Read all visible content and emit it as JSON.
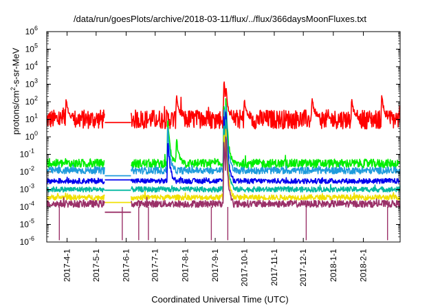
{
  "chart_data": {
    "type": "line",
    "title": "/data/run/goesPlots/archive/2018-03-11/flux/../flux/366daysMoonFluxes.txt",
    "ylabel": "protons/cm²-s-sr-MeV",
    "xlabel": "Coordinated Universal Time (UTC)",
    "yscale": "log",
    "ylim": [
      1e-06,
      1000000.0
    ],
    "xlim": [
      "2017-03-11",
      "2018-03-11"
    ],
    "y_ticks": [
      "10^-6",
      "10^-5",
      "10^-4",
      "10^-3",
      "10^-2",
      "10^-1",
      "10^0",
      "10^1",
      "10^2",
      "10^3",
      "10^4",
      "10^5",
      "10^6"
    ],
    "x_ticks": [
      "2017-4-1",
      "2017-5-1",
      "2017-6-1",
      "2017-7-1",
      "2017-8-1",
      "2017-9-1",
      "2017-10-1",
      "2017-11-1",
      "2017-12-1",
      "2018-1-1",
      "2018-2-1"
    ],
    "x_tick_dates": [
      "2017-04-01",
      "2017-05-01",
      "2017-06-01",
      "2017-07-01",
      "2017-08-01",
      "2017-09-01",
      "2017-10-01",
      "2017-11-01",
      "2017-12-01",
      "2018-01-01",
      "2018-02-01"
    ],
    "grid": false,
    "series": [
      {
        "color": "#ff0000",
        "baseline": 10,
        "noise_decades": 0.55,
        "spikes": [
          [
            "2017-03-31",
            150
          ],
          [
            "2017-07-23",
            350
          ],
          [
            "2017-09-10",
            2500
          ],
          [
            "2017-09-12",
            1000
          ],
          [
            "2017-10-01",
            150
          ],
          [
            "2017-12-10",
            250
          ],
          [
            "2018-01-20",
            200
          ],
          [
            "2018-02-20",
            400
          ]
        ]
      },
      {
        "color": "#00ee00",
        "baseline": 0.03,
        "noise_decades": 0.25,
        "spikes": [
          [
            "2017-07-14",
            20
          ],
          [
            "2017-07-23",
            1
          ],
          [
            "2017-09-10",
            200
          ],
          [
            "2017-09-12",
            400
          ]
        ]
      },
      {
        "color": "#1f9bdc",
        "baseline": 0.012,
        "noise_decades": 0.2,
        "spikes": [
          [
            "2017-07-14",
            5
          ],
          [
            "2017-09-10",
            80
          ],
          [
            "2017-09-12",
            150
          ]
        ]
      },
      {
        "color": "#0000ee",
        "baseline": 0.003,
        "noise_decades": 0.15,
        "spikes": [
          [
            "2017-07-14",
            1
          ],
          [
            "2017-09-10",
            30
          ],
          [
            "2017-09-12",
            60
          ]
        ]
      },
      {
        "color": "#00b8a0",
        "baseline": 0.001,
        "noise_decades": 0.15,
        "spikes": [
          [
            "2017-09-10",
            10
          ],
          [
            "2017-09-12",
            20
          ]
        ]
      },
      {
        "color": "#f0e000",
        "baseline": 0.00035,
        "noise_decades": 0.15,
        "spikes": [
          [
            "2017-09-10",
            3
          ],
          [
            "2017-09-12",
            5
          ]
        ]
      },
      {
        "color": "#9a3068",
        "baseline": 0.00015,
        "noise_decades": 0.2,
        "spikes": [
          [
            "2017-09-10",
            1
          ],
          [
            "2017-09-12",
            2
          ]
        ]
      }
    ],
    "data_gap": [
      "2017-05-10",
      "2017-06-06"
    ],
    "gap_flat_levels": [
      6.5,
      null,
      0.006,
      0.0035,
      0.0009,
      0.00018,
      5e-05
    ]
  }
}
